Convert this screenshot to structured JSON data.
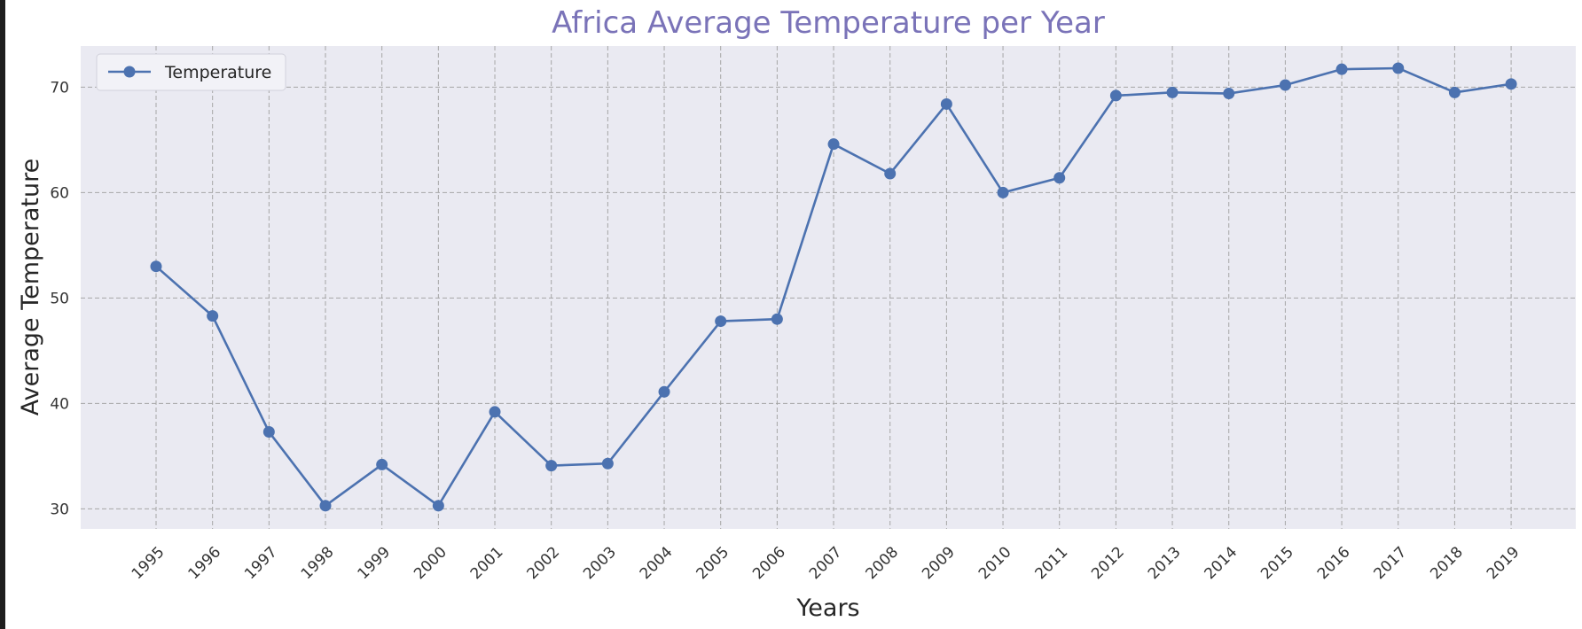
{
  "chart_data": {
    "type": "line",
    "title": "Africa Average Temperature per Year",
    "xlabel": "Years",
    "ylabel": "Average Temperature",
    "categories": [
      "1995",
      "1996",
      "1997",
      "1998",
      "1999",
      "2000",
      "2001",
      "2002",
      "2003",
      "2004",
      "2005",
      "2006",
      "2007",
      "2008",
      "2009",
      "2010",
      "2011",
      "2012",
      "2013",
      "2014",
      "2015",
      "2016",
      "2017",
      "2018",
      "2019"
    ],
    "series": [
      {
        "name": "Temperature",
        "values": [
          53.0,
          48.3,
          37.3,
          30.3,
          34.2,
          30.3,
          39.2,
          34.1,
          34.3,
          41.1,
          47.8,
          48.0,
          64.6,
          61.8,
          68.4,
          60.0,
          61.4,
          69.2,
          69.5,
          69.4,
          70.2,
          71.7,
          71.8,
          69.5,
          70.3
        ]
      }
    ],
    "ylim": [
      28.1,
      73.9
    ],
    "yticks": [
      30,
      40,
      50,
      60,
      70
    ],
    "grid": true,
    "legend_position": "top-left",
    "colors": {
      "line": "#4c72b0",
      "plot_background": "#eaeaf2",
      "grid": "#a6a6a6",
      "title": "#7a73b8"
    }
  }
}
